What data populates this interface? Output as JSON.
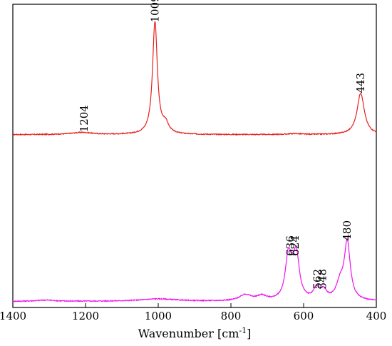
{
  "chart_data": {
    "type": "line",
    "title": "",
    "xlabel": "Wavenumber [cm",
    "xlabel_sup": "-1",
    "xlabel_end": "]",
    "ylabel": "",
    "xlim": [
      1400,
      400
    ],
    "x_reversed": true,
    "x_ticks": [
      "1400",
      "1200",
      "1000",
      "800",
      "600",
      "400"
    ],
    "y_axis_visible": false,
    "grid": false,
    "series": [
      {
        "color": "#e8201c",
        "baseline": 0.57,
        "noise": 0.0015,
        "peaks": [
          {
            "x": 1009,
            "height": 0.37,
            "width": 8
          },
          {
            "x": 980,
            "height": 0.03,
            "width": 10
          },
          {
            "x": 443,
            "height": 0.137,
            "width": 12
          },
          {
            "x": 1210,
            "height": 0.007,
            "width": 35
          },
          {
            "x": 625,
            "height": 0.003,
            "width": 20
          }
        ],
        "peak_labels": [
          {
            "x": 1204,
            "y": 0.578,
            "text": "1204"
          },
          {
            "x": 1009,
            "y": 0.94,
            "text": "1009"
          },
          {
            "x": 443,
            "y": 0.707,
            "text": "443"
          }
        ]
      },
      {
        "color": "#ee11ee",
        "baseline": 0.02,
        "noise": 0.0015,
        "peaks": [
          {
            "x": 642,
            "height": 0.14,
            "width": 10
          },
          {
            "x": 620,
            "height": 0.14,
            "width": 10
          },
          {
            "x": 630,
            "height": 0.03,
            "width": 8
          },
          {
            "x": 565,
            "height": 0.035,
            "width": 10
          },
          {
            "x": 545,
            "height": 0.03,
            "width": 10
          },
          {
            "x": 480,
            "height": 0.19,
            "width": 10
          },
          {
            "x": 500,
            "height": 0.05,
            "width": 12
          },
          {
            "x": 760,
            "height": 0.02,
            "width": 20
          },
          {
            "x": 715,
            "height": 0.015,
            "width": 15
          },
          {
            "x": 1000,
            "height": 0.008,
            "width": 60
          },
          {
            "x": 1310,
            "height": 0.004,
            "width": 30
          }
        ],
        "peak_labels": [
          {
            "x": 636,
            "y": 0.17,
            "text": "636"
          },
          {
            "x": 624,
            "y": 0.17,
            "text": "624"
          },
          {
            "x": 562,
            "y": 0.06,
            "text": "562"
          },
          {
            "x": 548,
            "y": 0.06,
            "text": "548"
          },
          {
            "x": 480,
            "y": 0.22,
            "text": "480"
          }
        ]
      }
    ]
  }
}
